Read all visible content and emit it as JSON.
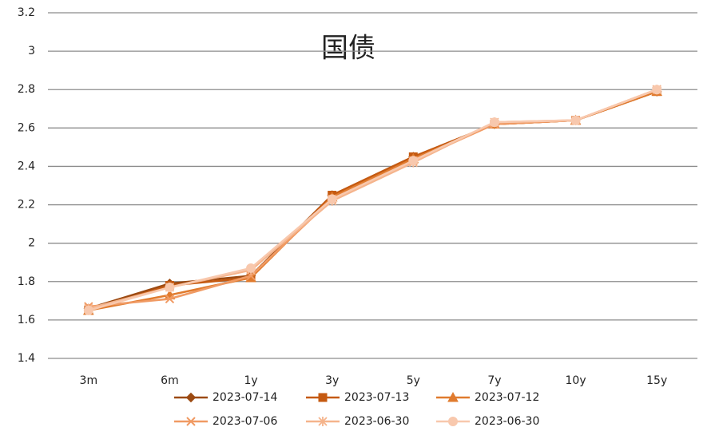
{
  "chart_data": {
    "type": "line",
    "title": "国债",
    "categories": [
      "3m",
      "6m",
      "1y",
      "3y",
      "5y",
      "7y",
      "10y",
      "15y"
    ],
    "ylim": [
      1.4,
      3.2
    ],
    "yticks": [
      1.4,
      1.6,
      1.8,
      2,
      2.2,
      2.4,
      2.6,
      2.8,
      3,
      3.2
    ],
    "grid": true,
    "legend": "bottom",
    "series": [
      {
        "name": "2023-07-14",
        "color": "#9c4a12",
        "marker": "diamond",
        "values": [
          1.66,
          1.79,
          1.83,
          2.25,
          2.45,
          2.62,
          2.64,
          2.79
        ]
      },
      {
        "name": "2023-07-13",
        "color": "#c55a11",
        "marker": "square",
        "values": [
          1.65,
          1.78,
          1.82,
          2.25,
          2.45,
          2.62,
          2.64,
          2.79
        ]
      },
      {
        "name": "2023-07-12",
        "color": "#e07b2e",
        "marker": "triangle",
        "values": [
          1.65,
          1.73,
          1.82,
          2.24,
          2.44,
          2.62,
          2.64,
          2.79
        ]
      },
      {
        "name": "2023-07-06",
        "color": "#f09a63",
        "marker": "x",
        "values": [
          1.67,
          1.71,
          1.83,
          2.23,
          2.43,
          2.62,
          2.64,
          2.8
        ]
      },
      {
        "name": "2023-06-30",
        "color": "#f5b48c",
        "marker": "star",
        "values": [
          1.66,
          1.77,
          1.86,
          2.22,
          2.42,
          2.63,
          2.64,
          2.8
        ]
      },
      {
        "name": "2023-06-30",
        "color": "#f8c8ad",
        "marker": "circle",
        "values": [
          1.65,
          1.77,
          1.87,
          2.23,
          2.43,
          2.63,
          2.64,
          2.8
        ]
      }
    ]
  }
}
